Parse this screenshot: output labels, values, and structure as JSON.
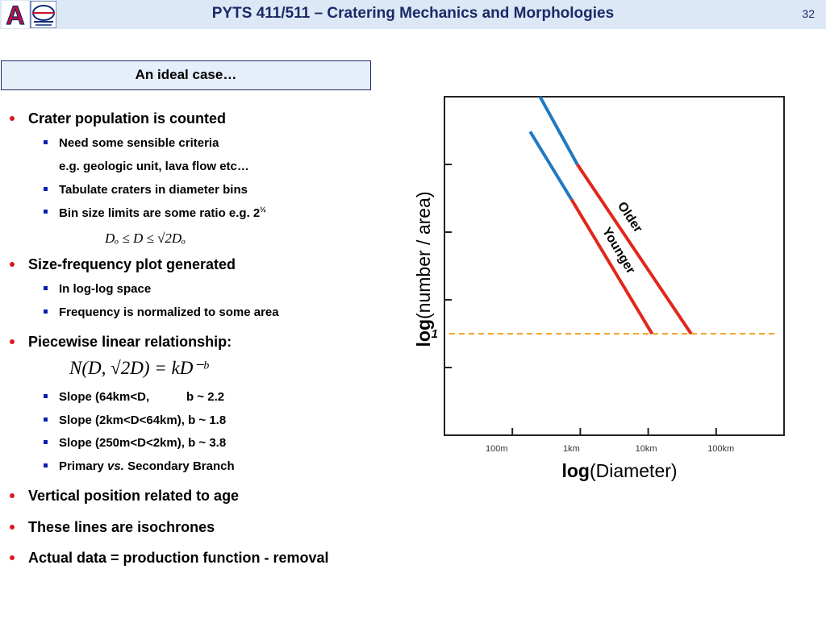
{
  "header": {
    "title": "PYTS 411/511 – Cratering Mechanics and Morphologies",
    "page_number": "32",
    "logo_letter": "A"
  },
  "box_heading": "An ideal case…",
  "bullets": {
    "b1": "Crater population is counted",
    "b1_1": "Need some sensible criteria",
    "b1_1_cont": "e.g. geologic unit, lava flow etc…",
    "b1_2": "Tabulate craters in diameter bins",
    "b1_3_text": "Bin size limits are some ratio e.g. 2",
    "b1_3_sup": "½",
    "b2": "Size-frequency plot generated",
    "b2_1": "In log-log space",
    "b2_2": "Frequency is normalized to some area",
    "b3": "Piecewise linear relationship:",
    "b3_1": "Slope (64km<D,           b ~ 2.2",
    "b3_2": "Slope (2km<D<64km), b ~ 1.8",
    "b3_3": "Slope (250m<D<2km), b ~ 3.8",
    "b3_4_a": "Primary ",
    "b3_4_b": "vs.",
    "b3_4_c": " Secondary Branch",
    "b4": "Vertical position related to age",
    "b5": "These lines are isochrones",
    "b6": "Actual data = production function - removal"
  },
  "equations": {
    "bin_limits": "Dₒ ≤ D ≤ √2Dₒ",
    "power_law": "N(D, √2D) = kD⁻ᵇ"
  },
  "chart_data": {
    "type": "line",
    "xlabel": "log(Diameter)",
    "ylabel": "log(number / area)",
    "x_ticks": [
      "100m",
      "1km",
      "10km",
      "100km"
    ],
    "y_tick_label": "1",
    "series": [
      {
        "name": "Younger",
        "points_km": [
          [
            0.28,
            60000
          ],
          [
            1.0,
            1500
          ],
          [
            12,
            1
          ]
        ],
        "branch_colors": [
          "#2079c2",
          "#e3261b"
        ]
      },
      {
        "name": "Older",
        "points_km": [
          [
            0.38,
            400000
          ],
          [
            1.2,
            10000
          ],
          [
            40,
            1
          ]
        ],
        "branch_colors": [
          "#2079c2",
          "#e3261b"
        ]
      }
    ],
    "xlim_km": [
      0.02,
      700
    ],
    "ylim": [
      0.004,
      400000
    ],
    "reference_line": {
      "y": 1,
      "color": "#f0a020",
      "style": "dashed"
    },
    "colors": {
      "primary": "#e3261b",
      "secondary": "#2079c2",
      "axis": "#222222"
    }
  }
}
